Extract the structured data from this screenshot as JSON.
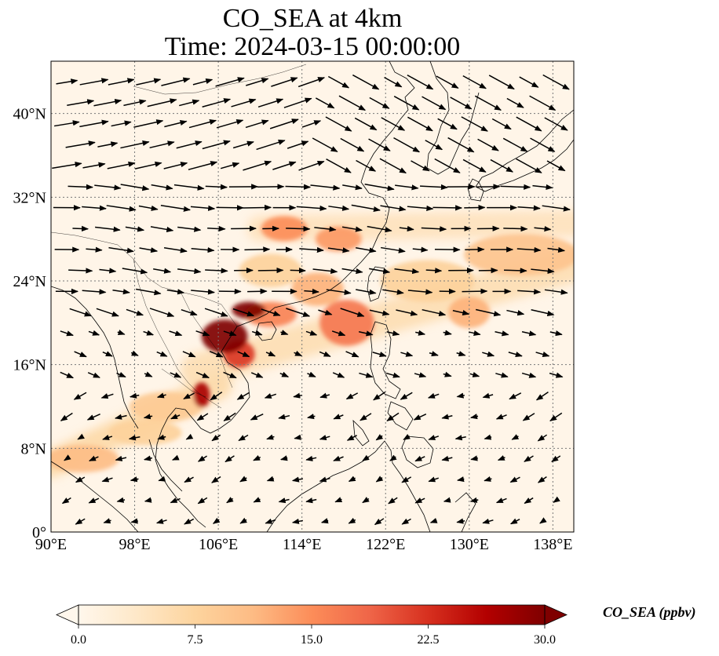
{
  "title": {
    "line1": "CO_SEA at 4km",
    "line2": "Time: 2024-03-15 00:00:00"
  },
  "map": {
    "lon_range": [
      90,
      140
    ],
    "lat_range": [
      0,
      45
    ],
    "lon_ticks": [
      {
        "value": 90,
        "label": "90°E"
      },
      {
        "value": 98,
        "label": "98°E"
      },
      {
        "value": 106,
        "label": "106°E"
      },
      {
        "value": 114,
        "label": "114°E"
      },
      {
        "value": 122,
        "label": "122°E"
      },
      {
        "value": 130,
        "label": "130°E"
      },
      {
        "value": 138,
        "label": "138°E"
      }
    ],
    "lat_ticks": [
      {
        "value": 0,
        "label": "0°"
      },
      {
        "value": 8,
        "label": "8°N"
      },
      {
        "value": 16,
        "label": "16°N"
      },
      {
        "value": 24,
        "label": "24°N"
      },
      {
        "value": 32,
        "label": "32°N"
      },
      {
        "value": 40,
        "label": "40°N"
      }
    ],
    "gridlines": true,
    "colormap": "OrRd",
    "background_color": "#fff5e8",
    "coast_color": "#000000",
    "hotspots": [
      {
        "lon": 106.6,
        "lat": 18.7,
        "value": 30,
        "rlon": 2.2,
        "rlat": 1.6
      },
      {
        "lon": 108.9,
        "lat": 21.2,
        "value": 30,
        "rlon": 1.6,
        "rlat": 0.8
      },
      {
        "lon": 104.4,
        "lat": 13.1,
        "value": 27,
        "rlon": 0.8,
        "rlat": 1.2
      },
      {
        "lon": 108.0,
        "lat": 17.0,
        "value": 22,
        "rlon": 1.5,
        "rlat": 1.3
      },
      {
        "lon": 118.3,
        "lat": 20.0,
        "value": 17,
        "rlon": 2.6,
        "rlat": 2.2
      },
      {
        "lon": 112.3,
        "lat": 29.0,
        "value": 15,
        "rlon": 2.2,
        "rlat": 1.2
      },
      {
        "lon": 117.5,
        "lat": 28.0,
        "value": 14,
        "rlon": 2.2,
        "rlat": 1.2
      },
      {
        "lon": 111.0,
        "lat": 20.8,
        "value": 16,
        "rlon": 2.5,
        "rlat": 1.2
      },
      {
        "lon": 115.5,
        "lat": 23.2,
        "value": 12,
        "rlon": 2.5,
        "rlat": 1.6
      },
      {
        "lon": 130.0,
        "lat": 21.0,
        "value": 12,
        "rlon": 2.0,
        "rlat": 1.5
      },
      {
        "lon": 101.0,
        "lat": 12.0,
        "value": 9,
        "rlon": 3.5,
        "rlat": 1.4
      },
      {
        "lon": 99.0,
        "lat": 9.5,
        "value": 8,
        "rlon": 3.5,
        "rlat": 1.2
      },
      {
        "lon": 93.0,
        "lat": 7.0,
        "value": 11,
        "rlon": 3.5,
        "rlat": 1.3
      },
      {
        "lon": 135.0,
        "lat": 26.5,
        "value": 10,
        "rlon": 5.5,
        "rlat": 2.0
      },
      {
        "lon": 126.0,
        "lat": 24.0,
        "value": 8,
        "rlon": 4.5,
        "rlat": 2.0
      },
      {
        "lon": 111.0,
        "lat": 25.0,
        "value": 8,
        "rlon": 3.0,
        "rlat": 1.6
      }
    ],
    "bands": [
      {
        "from": [
          90,
          6.5
        ],
        "to": [
          106,
          14.0
        ],
        "value": 7,
        "width_deg": 2.6
      },
      {
        "from": [
          104,
          15.5
        ],
        "to": [
          140,
          25.5
        ],
        "value": 6,
        "width_deg": 3.2
      },
      {
        "from": [
          110,
          29.0
        ],
        "to": [
          140,
          29.5
        ],
        "value": 5,
        "width_deg": 2.5
      }
    ]
  },
  "colorbar": {
    "label": "CO_SEA (ppbv)",
    "min": 0,
    "max": 30,
    "extend": "both",
    "ticks": [
      {
        "value": 0,
        "label": "0.0"
      },
      {
        "value": 7.5,
        "label": "7.5"
      },
      {
        "value": 15,
        "label": "15.0"
      },
      {
        "value": 22.5,
        "label": "22.5"
      },
      {
        "value": 30,
        "label": "30.0"
      }
    ],
    "stops": [
      "#fff7ec",
      "#fee8c8",
      "#fdd49e",
      "#fdbb84",
      "#fc8d59",
      "#ef6548",
      "#d7301f",
      "#b30000",
      "#7f0000"
    ]
  }
}
